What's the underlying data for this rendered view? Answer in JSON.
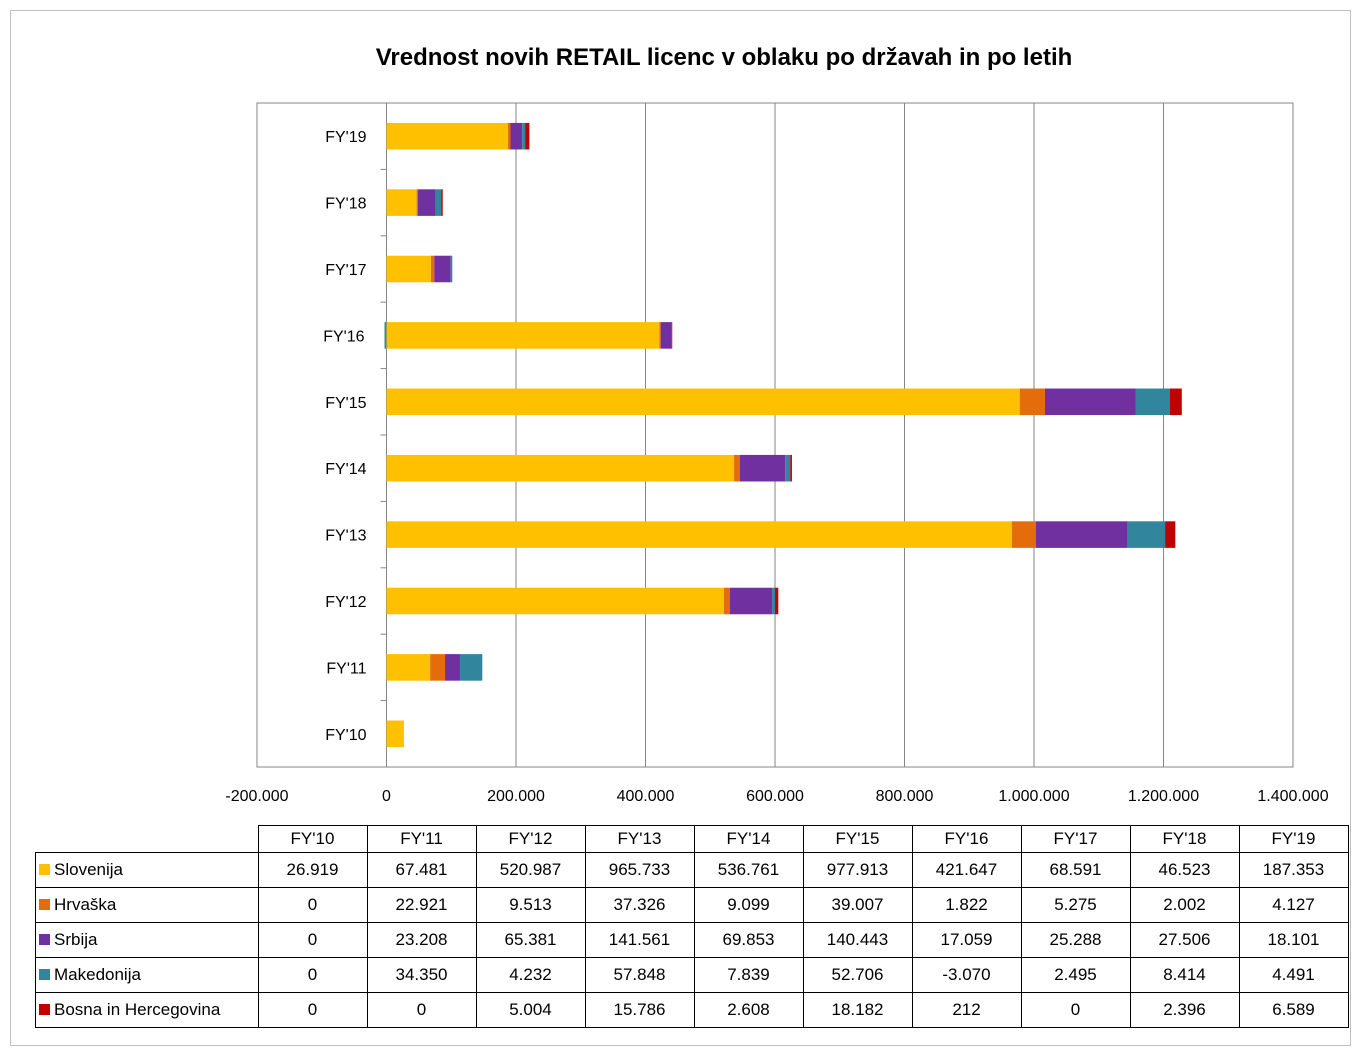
{
  "chart_data": {
    "type": "bar",
    "orientation": "horizontal",
    "stacked": true,
    "title": "Vrednost novih RETAIL licenc v oblaku po državah in po letih",
    "categories": [
      "FY'10",
      "FY'11",
      "FY'12",
      "FY'13",
      "FY'14",
      "FY'15",
      "FY'16",
      "FY'17",
      "FY'18",
      "FY'19"
    ],
    "series": [
      {
        "name": "Slovenija",
        "color": "#ffc000",
        "values": [
          26919,
          67481,
          520987,
          965733,
          536761,
          977913,
          421647,
          68591,
          46523,
          187353
        ],
        "labels": [
          "26.919",
          "67.481",
          "520.987",
          "965.733",
          "536.761",
          "977.913",
          "421.647",
          "68.591",
          "46.523",
          "187.353"
        ]
      },
      {
        "name": "Hrvaška",
        "color": "#e46c0a",
        "values": [
          0,
          22921,
          9513,
          37326,
          9099,
          39007,
          1822,
          5275,
          2002,
          4127
        ],
        "labels": [
          "0",
          "22.921",
          "9.513",
          "37.326",
          "9.099",
          "39.007",
          "1.822",
          "5.275",
          "2.002",
          "4.127"
        ]
      },
      {
        "name": "Srbija",
        "color": "#7030a0",
        "values": [
          0,
          23208,
          65381,
          141561,
          69853,
          140443,
          17059,
          25288,
          27506,
          18101
        ],
        "labels": [
          "0",
          "23.208",
          "65.381",
          "141.561",
          "69.853",
          "140.443",
          "17.059",
          "25.288",
          "27.506",
          "18.101"
        ]
      },
      {
        "name": "Makedonija",
        "color": "#31859c",
        "values": [
          0,
          34350,
          4232,
          57848,
          7839,
          52706,
          -3070,
          2495,
          8414,
          4491
        ],
        "labels": [
          "0",
          "34.350",
          "4.232",
          "57.848",
          "7.839",
          "52.706",
          "-3.070",
          "2.495",
          "8.414",
          "4.491"
        ]
      },
      {
        "name": "Bosna in Hercegovina",
        "color": "#c00000",
        "values": [
          0,
          0,
          5004,
          15786,
          2608,
          18182,
          212,
          0,
          2396,
          6589
        ],
        "labels": [
          "0",
          "0",
          "5.004",
          "15.786",
          "2.608",
          "18.182",
          "212",
          "0",
          "2.396",
          "6.589"
        ]
      }
    ],
    "xlim": [
      -200000,
      1400000
    ],
    "xticks": [
      -200000,
      0,
      200000,
      400000,
      600000,
      800000,
      1000000,
      1200000,
      1400000
    ],
    "xtick_labels": [
      "-200.000",
      "0",
      "200.000",
      "400.000",
      "600.000",
      "800.000",
      "1.000.000",
      "1.200.000",
      "1.400.000"
    ],
    "grid": true,
    "legend": "data table below chart"
  }
}
